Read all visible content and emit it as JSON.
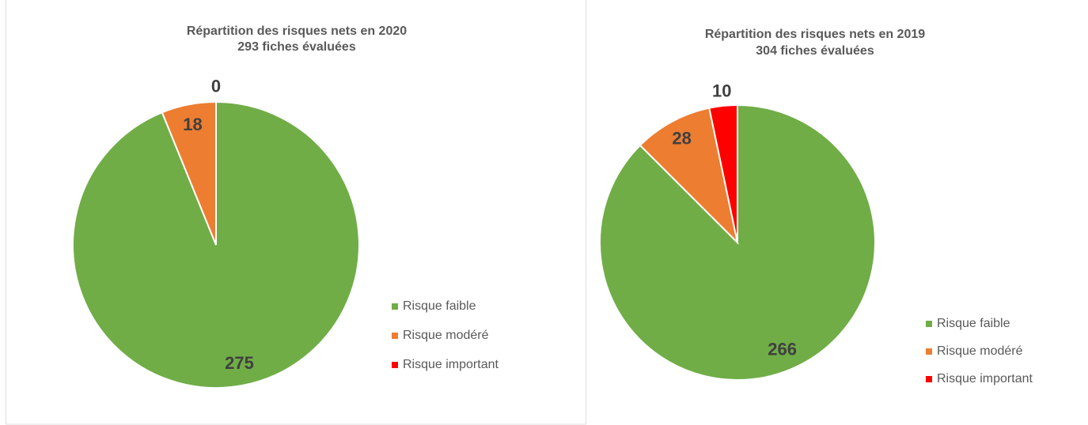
{
  "chart_data": [
    {
      "type": "pie",
      "title": "Répartition des risques nets en 2020",
      "subtitle": "293 fiches évaluées",
      "categories": [
        "Risque faible",
        "Risque modéré",
        "Risque important"
      ],
      "values": [
        275,
        18,
        0
      ],
      "colors": [
        "#70ad47",
        "#ed7d31",
        "#ff0000"
      ],
      "legend": "right"
    },
    {
      "type": "pie",
      "title": "Répartition des risques nets en 2019",
      "subtitle": "304 fiches évaluées",
      "categories": [
        "Risque faible",
        "Risque modéré",
        "Risque important"
      ],
      "values": [
        266,
        28,
        10
      ],
      "colors": [
        "#70ad47",
        "#ed7d31",
        "#ff0000"
      ],
      "legend": "right"
    }
  ]
}
